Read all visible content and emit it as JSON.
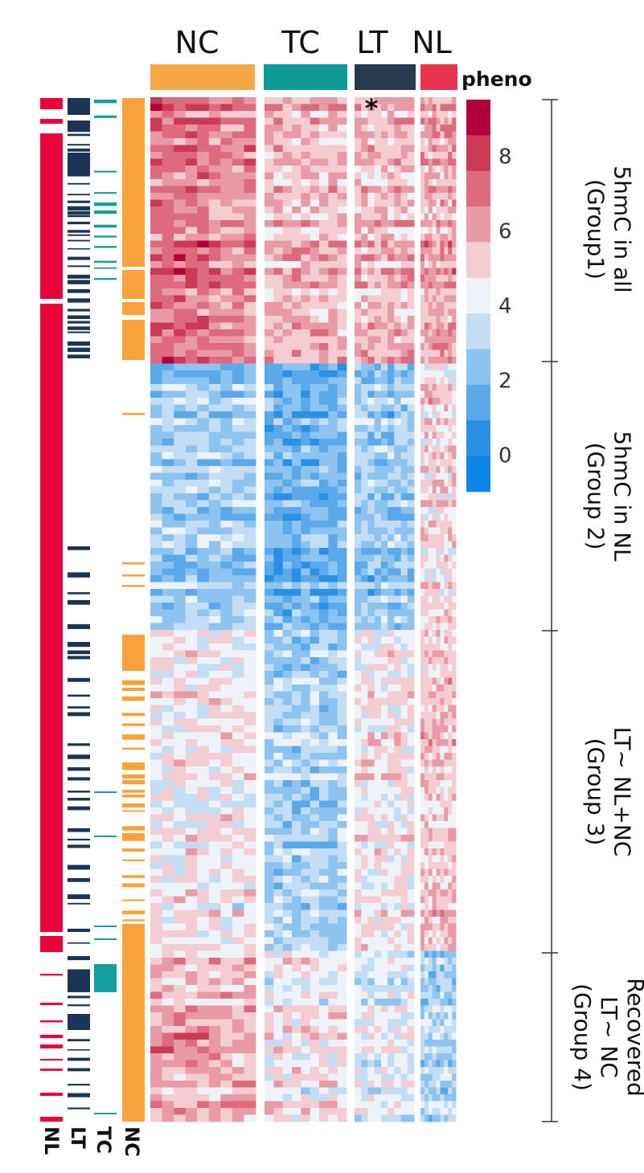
{
  "chart_data": {
    "type": "heatmap",
    "title": "",
    "xlabel": "",
    "ylabel": "",
    "groups": [
      {
        "label": "NC",
        "color": "#F4A946"
      },
      {
        "label": "TC",
        "color": "#0E9A98"
      },
      {
        "label": "LT",
        "color": "#263B50"
      },
      {
        "label": "NL",
        "color": "#E8344E"
      }
    ],
    "pheno_label": "pheno",
    "annotation_tracks": [
      {
        "label": "NL",
        "color": "#E8053A"
      },
      {
        "label": "LT",
        "color": "#1B3556"
      },
      {
        "label": "TC",
        "color": "#139F9D"
      },
      {
        "label": "NC",
        "color": "#F7A23A"
      }
    ],
    "marker": "*",
    "colorbar": {
      "ticks": [
        "8",
        "6",
        "4",
        "2",
        "0"
      ],
      "colors": [
        "#b2003a",
        "#cb3a55",
        "#dd6a7d",
        "#e99aa7",
        "#f4cdd2",
        "#eef2f9",
        "#c2ddf4",
        "#8cc3ef",
        "#5aa9ea",
        "#2a90e6",
        "#0e86e6"
      ],
      "range": [
        -1,
        9.5
      ]
    },
    "row_groups": [
      {
        "lines": [
          "5hmC in all",
          "(Group1)"
        ],
        "pattern": "high_all"
      },
      {
        "lines": [
          "5hmC in NL",
          "(Group 2)"
        ],
        "pattern": "high_NL"
      },
      {
        "lines": [
          "LT~ NL+NC",
          "(Group 3)"
        ],
        "pattern": "LT_like_NL_NC"
      },
      {
        "lines": [
          "Recovered",
          "LT~ NC",
          "(Group 4)"
        ],
        "pattern": "LT_like_NC"
      }
    ]
  }
}
